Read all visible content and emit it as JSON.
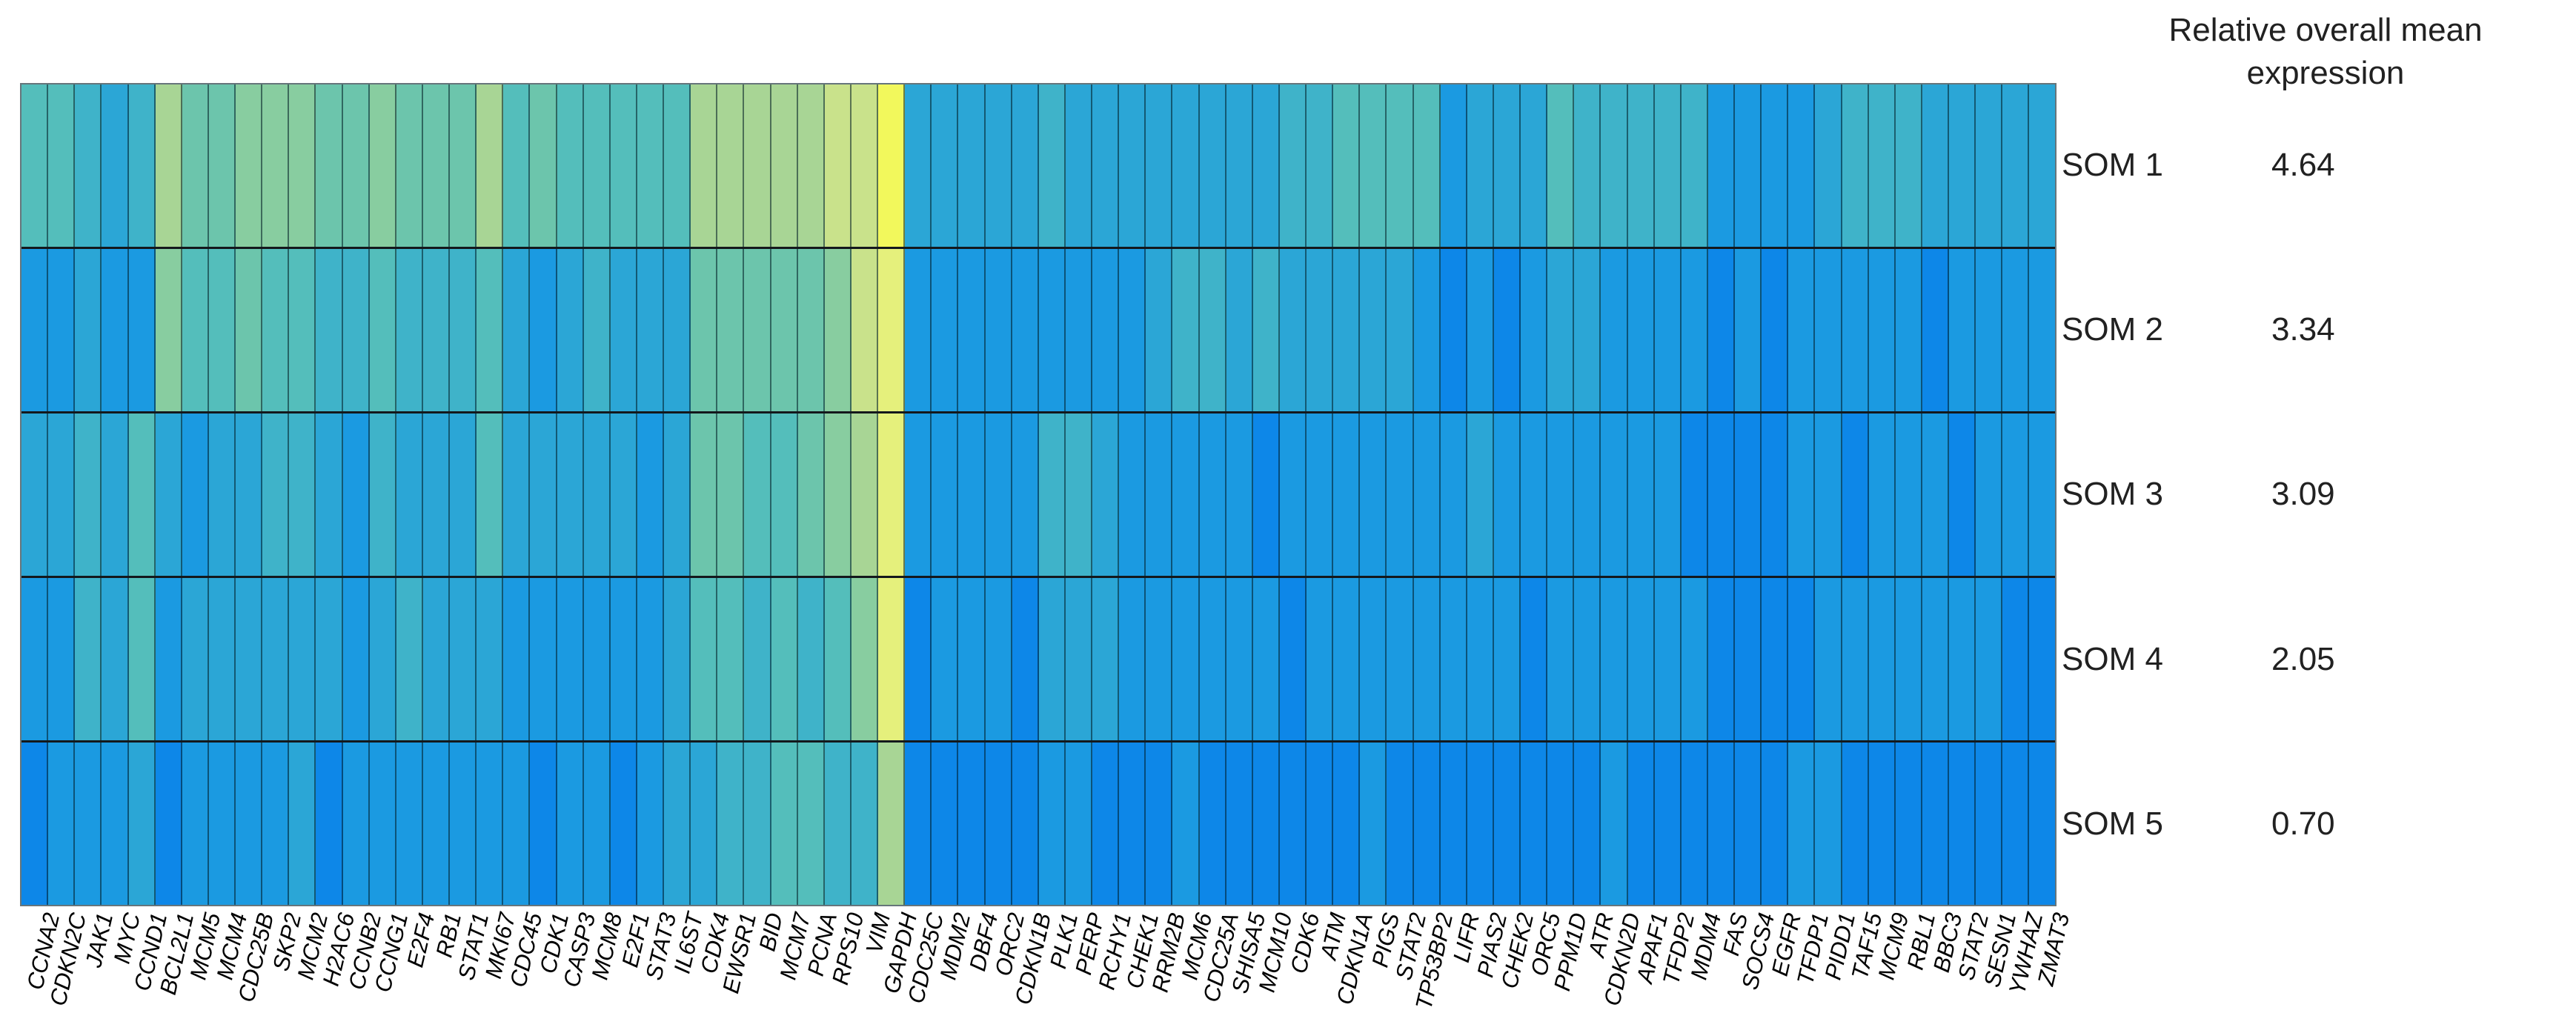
{
  "figure": {
    "legend_title": "Relative overall mean expression",
    "rows": [
      {
        "label": "SOM 1",
        "value": "4.64"
      },
      {
        "label": "SOM 2",
        "value": "3.34"
      },
      {
        "label": "SOM 3",
        "value": "3.09"
      },
      {
        "label": "SOM 4",
        "value": "2.05"
      },
      {
        "label": "SOM 5",
        "value": "0.70"
      }
    ]
  },
  "chart_data": {
    "type": "heatmap",
    "title": "",
    "x_tick_labels": [
      "CCNA2",
      "CDKN2C",
      "JAK1",
      "MYC",
      "CCND1",
      "BCL2L1",
      "MCM5",
      "MCM4",
      "CDC25B",
      "SKP2",
      "MCM2",
      "H2AC6",
      "CCNB2",
      "CCNG1",
      "E2F4",
      "RB1",
      "STAT1",
      "MKI67",
      "CDC45",
      "CDK1",
      "CASP3",
      "MCM8",
      "E2F1",
      "STAT3",
      "IL6ST",
      "CDK4",
      "EWSR1",
      "BID",
      "MCM7",
      "PCNA",
      "RPS10",
      "VIM",
      "GAPDH",
      "CDC25C",
      "MDM2",
      "DBF4",
      "ORC2",
      "CDKN1B",
      "PLK1",
      "PERP",
      "RCHY1",
      "CHEK1",
      "RRM2B",
      "MCM6",
      "CDC25A",
      "SHISA5",
      "MCM10",
      "CDK6",
      "ATM",
      "CDKN1A",
      "PIGS",
      "STAT2",
      "TP53BP2",
      "LIFR",
      "PIAS2",
      "CHEK2",
      "ORC5",
      "PPM1D",
      "ATR",
      "CDKN2D",
      "APAF1",
      "TFDP2",
      "MDM4",
      "FAS",
      "SOCS4",
      "EGFR",
      "TFDP1",
      "PIDD1",
      "TAF15",
      "MCM9",
      "RBL1",
      "BBC3",
      "STAT2",
      "SESN1",
      "YWHAZ",
      "ZMAT3"
    ],
    "y_tick_labels": [
      "SOM 1",
      "SOM 2",
      "SOM 3",
      "SOM 4",
      "SOM 5"
    ],
    "right_column": {
      "title": "Relative overall mean expression",
      "values": [
        4.64,
        3.34,
        3.09,
        2.05,
        0.7
      ]
    },
    "color_scale": {
      "description": "Estimated expression color level read from pixels: 0 = deep blue (low) to 10 = bright yellow (high)",
      "palette": [
        "#0d87e8",
        "#1b9ae1",
        "#2ba6d6",
        "#3fb3c9",
        "#54bebb",
        "#6cc5ac",
        "#88cda0",
        "#a8d595",
        "#c9e28b",
        "#e5f07c",
        "#f2f85c"
      ]
    },
    "levels": [
      [
        4,
        4,
        3,
        2,
        3,
        7,
        5,
        5,
        6,
        6,
        6,
        5,
        5,
        6,
        5,
        5,
        5,
        7,
        4,
        5,
        4,
        4,
        4,
        4,
        4,
        7,
        7,
        7,
        7,
        7,
        8,
        8,
        10,
        2,
        2,
        2,
        2,
        2,
        3,
        2,
        2,
        2,
        2,
        2,
        2,
        2,
        2,
        3,
        3,
        4,
        4,
        4,
        4,
        1,
        2,
        2,
        2,
        4,
        3,
        3,
        3,
        3,
        3,
        1,
        1,
        1,
        1,
        2,
        3,
        3,
        3,
        2,
        2,
        2,
        2,
        2
      ],
      [
        1,
        1,
        2,
        1,
        1,
        6,
        4,
        4,
        5,
        4,
        4,
        3,
        3,
        4,
        3,
        3,
        3,
        4,
        2,
        1,
        2,
        3,
        2,
        2,
        2,
        5,
        5,
        5,
        5,
        5,
        6,
        8,
        9,
        1,
        1,
        1,
        1,
        1,
        1,
        1,
        1,
        1,
        2,
        3,
        3,
        2,
        3,
        2,
        2,
        2,
        2,
        2,
        1,
        0,
        1,
        0,
        1,
        2,
        2,
        1,
        1,
        1,
        1,
        0,
        1,
        0,
        1,
        1,
        1,
        1,
        1,
        0,
        1,
        1,
        1,
        1
      ],
      [
        2,
        2,
        3,
        2,
        4,
        2,
        1,
        2,
        2,
        3,
        3,
        2,
        1,
        3,
        2,
        2,
        2,
        4,
        2,
        2,
        2,
        2,
        2,
        1,
        2,
        5,
        5,
        4,
        4,
        5,
        6,
        7,
        9,
        1,
        1,
        1,
        1,
        1,
        3,
        3,
        2,
        1,
        1,
        1,
        1,
        1,
        0,
        1,
        1,
        1,
        1,
        1,
        1,
        1,
        2,
        1,
        1,
        1,
        1,
        1,
        1,
        1,
        0,
        0,
        0,
        0,
        1,
        1,
        0,
        1,
        1,
        1,
        0,
        1,
        1,
        1
      ],
      [
        1,
        1,
        3,
        2,
        4,
        1,
        2,
        2,
        2,
        2,
        2,
        2,
        1,
        2,
        3,
        2,
        2,
        2,
        1,
        1,
        1,
        1,
        1,
        1,
        2,
        4,
        4,
        3,
        4,
        3,
        4,
        6,
        9,
        0,
        1,
        1,
        1,
        0,
        2,
        2,
        2,
        1,
        1,
        1,
        1,
        1,
        1,
        0,
        1,
        1,
        1,
        1,
        1,
        1,
        1,
        1,
        0,
        1,
        1,
        1,
        1,
        1,
        1,
        0,
        0,
        0,
        0,
        1,
        1,
        1,
        1,
        1,
        1,
        1,
        0,
        0
      ],
      [
        0,
        1,
        1,
        1,
        2,
        0,
        1,
        1,
        1,
        1,
        2,
        0,
        1,
        1,
        1,
        1,
        1,
        1,
        1,
        0,
        1,
        1,
        0,
        1,
        2,
        2,
        3,
        3,
        4,
        4,
        3,
        3,
        7,
        0,
        0,
        0,
        0,
        0,
        1,
        1,
        0,
        0,
        0,
        1,
        0,
        0,
        0,
        0,
        0,
        0,
        1,
        0,
        0,
        0,
        0,
        0,
        0,
        0,
        0,
        1,
        0,
        0,
        0,
        0,
        0,
        0,
        1,
        1,
        0,
        0,
        0,
        0,
        0,
        0,
        0,
        0
      ]
    ],
    "grid": "dark cell separators, black row separators",
    "legend_position": "right"
  }
}
